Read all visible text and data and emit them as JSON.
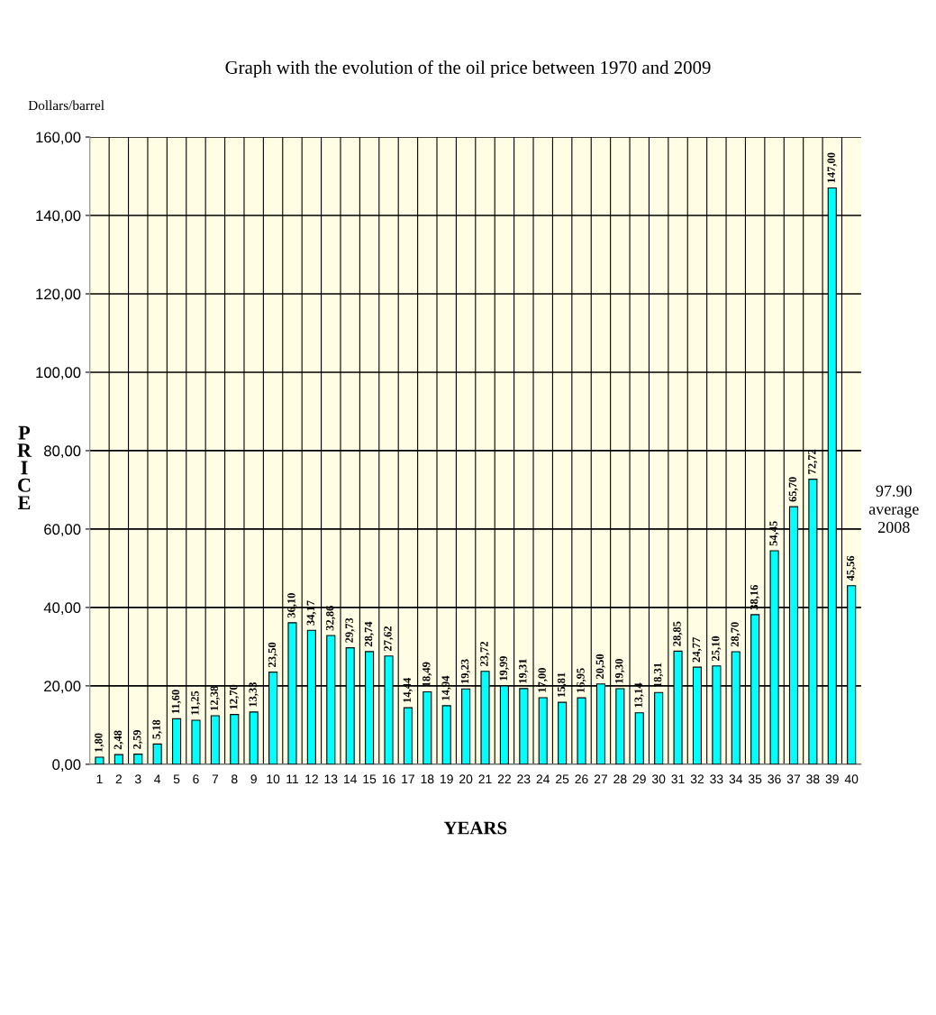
{
  "chart_data": {
    "type": "bar",
    "title": "Graph with the evolution of the oil price between 1970 and 2009",
    "xlabel": "YEARS",
    "ylabel": "PRICE",
    "categories": [
      "1",
      "2",
      "3",
      "4",
      "5",
      "6",
      "7",
      "8",
      "9",
      "10",
      "11",
      "12",
      "13",
      "14",
      "15",
      "16",
      "17",
      "18",
      "19",
      "20",
      "21",
      "22",
      "23",
      "24",
      "25",
      "26",
      "27",
      "28",
      "29",
      "30",
      "31",
      "32",
      "33",
      "34",
      "35",
      "36",
      "37",
      "38",
      "39",
      "40"
    ],
    "values": [
      1.8,
      2.48,
      2.59,
      5.18,
      11.6,
      11.25,
      12.38,
      12.7,
      13.33,
      23.5,
      36.1,
      34.17,
      32.86,
      29.73,
      28.74,
      27.62,
      14.44,
      18.49,
      14.94,
      19.23,
      23.72,
      19.99,
      19.31,
      17.0,
      15.81,
      16.95,
      20.5,
      19.3,
      13.14,
      18.31,
      28.85,
      24.77,
      25.1,
      28.7,
      38.16,
      54.45,
      65.7,
      72.72,
      147.0,
      45.56
    ],
    "value_labels": [
      "1,80",
      "2,48",
      "2,59",
      "5,18",
      "11,60",
      "11,25",
      "12,38",
      "12,70",
      "13,33",
      "23,50",
      "36,10",
      "34,17",
      "32,86",
      "29,73",
      "28,74",
      "27,62",
      "14,44",
      "18,49",
      "14,94",
      "19,23",
      "23,72",
      "19,99",
      "19,31",
      "17,00",
      "15,81",
      "16,95",
      "20,50",
      "19,30",
      "13,14",
      "18,31",
      "28,85",
      "24,77",
      "25,10",
      "28,70",
      "38,16",
      "54,45",
      "65,70",
      "72,72",
      "147,00",
      "45,56"
    ],
    "color": "#00ffff",
    "ylim": [
      0,
      160
    ],
    "yticks": [
      {
        "value": 0,
        "label": "0,00"
      },
      {
        "value": 20,
        "label": "20,00"
      },
      {
        "value": 40,
        "label": "40,00"
      },
      {
        "value": 60,
        "label": "60,00"
      },
      {
        "value": 80,
        "label": "80,00"
      },
      {
        "value": 100,
        "label": "100,00"
      },
      {
        "value": 120,
        "label": "120,00"
      },
      {
        "value": 140,
        "label": "140,00"
      },
      {
        "value": 160,
        "label": "160,00"
      }
    ],
    "grid": true,
    "annotations": [
      "Dollars/barrel",
      "97.90\naverage\n2008"
    ]
  }
}
